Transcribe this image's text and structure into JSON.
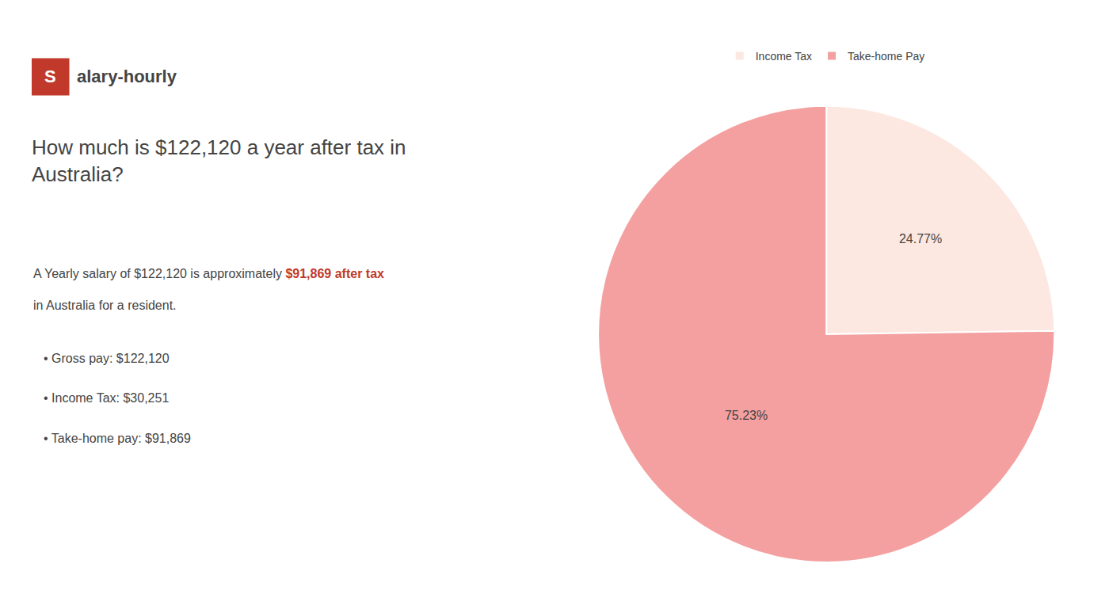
{
  "chart_data": {
    "type": "pie",
    "title": "How much is $122,120 a year after tax in\nAustralia?",
    "categories": [
      "Income Tax",
      "Take-home Pay"
    ],
    "values": [
      24.77,
      75.23
    ],
    "value_labels": [
      "24.77%",
      "75.23%"
    ],
    "colors": [
      "#fce8e0",
      "#f4a0a0"
    ],
    "data_labels": true,
    "legend": "top",
    "annotations": [
      {
        "text": "S",
        "color": "#c0392b"
      },
      {
        "text": "alary-hourly"
      },
      {
        "text": "A Yearly salary of $122,120 is approximately "
      },
      {
        "text": "$91,869 after tax",
        "color": "#c0392b"
      },
      {
        "text": "in Australia for a resident."
      },
      {
        "text": "• Gross pay: $122,120"
      },
      {
        "text": "• Income Tax: $30,251"
      },
      {
        "text": "• Take-home pay: $91,869"
      }
    ]
  }
}
